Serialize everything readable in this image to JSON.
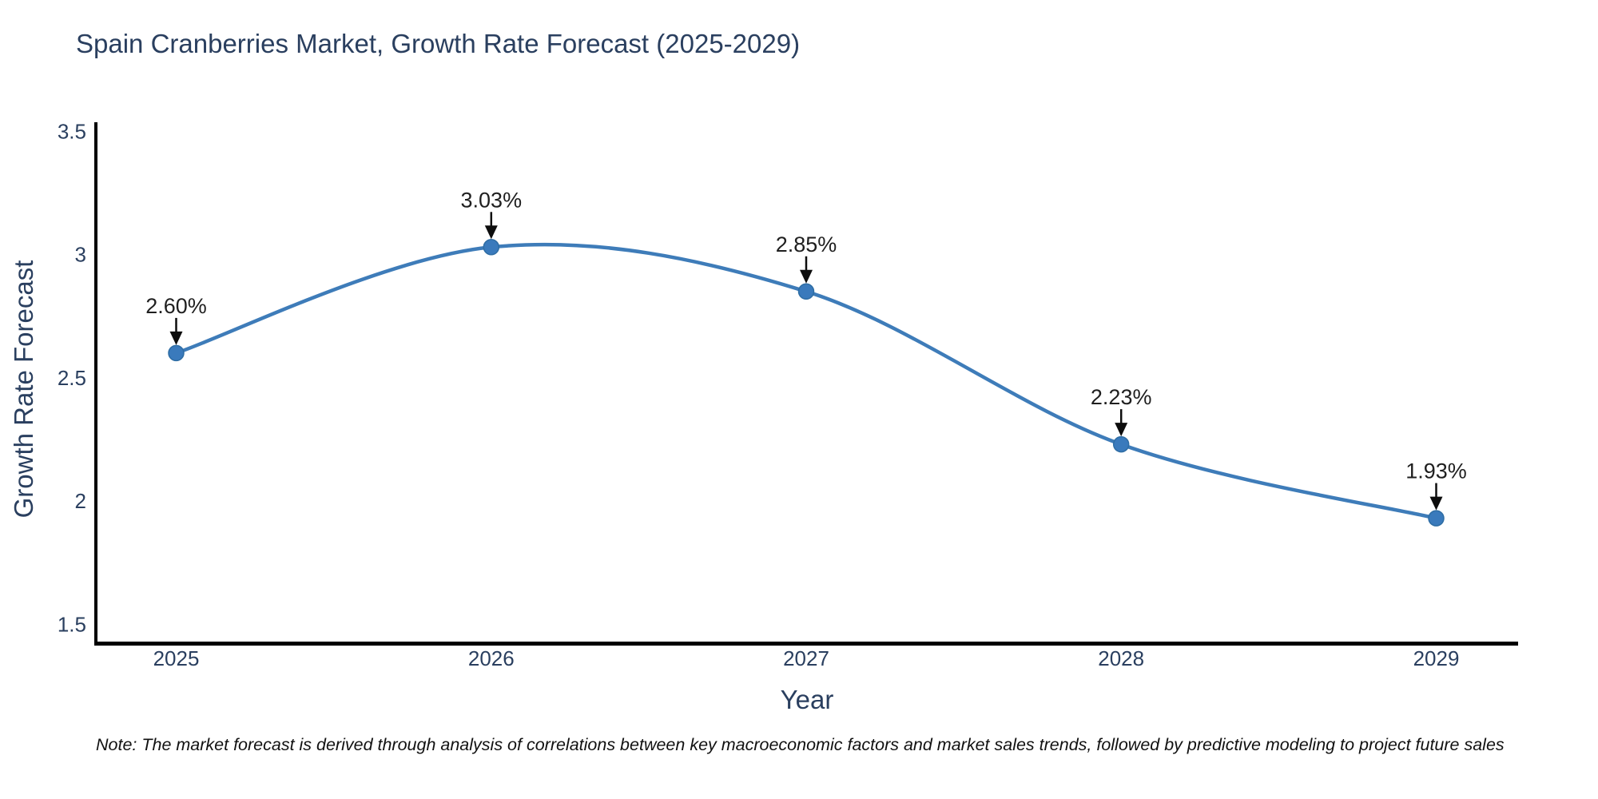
{
  "chart_data": {
    "type": "line",
    "title": "Spain Cranberries Market, Growth Rate Forecast (2025-2029)",
    "xlabel": "Year",
    "ylabel": "Growth Rate Forecast",
    "x": [
      2025,
      2026,
      2027,
      2028,
      2029
    ],
    "values": [
      2.6,
      3.03,
      2.85,
      2.23,
      1.93
    ],
    "point_labels": [
      "2.60%",
      "3.03%",
      "2.85%",
      "2.23%",
      "1.93%"
    ],
    "xtick_labels": [
      "2025",
      "2026",
      "2027",
      "2028",
      "2029"
    ],
    "yticks": [
      1.5,
      2,
      2.5,
      3,
      3.5
    ],
    "ytick_labels": [
      "1.5",
      "2",
      "2.5",
      "3",
      "3.5"
    ],
    "xlim": [
      2024.74,
      2029.26
    ],
    "ylim": [
      1.42,
      3.53
    ],
    "line_shape": "spline",
    "grid": false,
    "legend": "none",
    "note": "Note: The market forecast is derived through analysis of correlations between key macroeconomic factors and market sales trends, followed by predictive modeling to project future sales",
    "colors": {
      "line": "#3e7cb9",
      "marker": "#3a7abc",
      "marker_edge": "#2e6da4",
      "axis": "#000000",
      "label_text": "#2a3f5f",
      "annotation_text": "#1f1f1f",
      "annotation_arrow": "#0d0d0d",
      "note_text": "#111111",
      "background": "#ffffff"
    }
  }
}
